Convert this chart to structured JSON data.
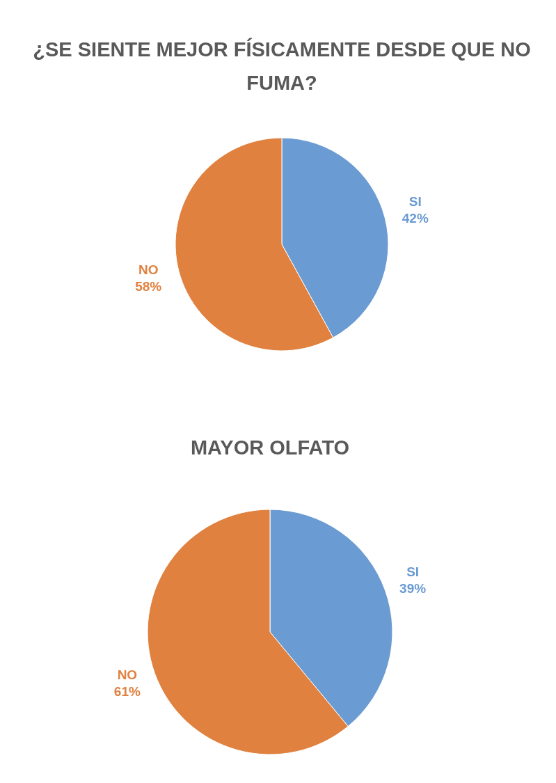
{
  "chart_data": [
    {
      "type": "pie",
      "title": "¿SE SIENTE MEJOR FÍSICAMENTE DESDE QUE NO FUMA?",
      "categories": [
        "SI",
        "NO"
      ],
      "values": [
        42,
        58
      ],
      "value_labels": [
        "42%",
        "58%"
      ],
      "colors": [
        "#6a9bd2",
        "#e0813f"
      ],
      "legend": false
    },
    {
      "type": "pie",
      "title": "MAYOR OLFATO",
      "categories": [
        "SI",
        "NO"
      ],
      "values": [
        39,
        61
      ],
      "value_labels": [
        "39%",
        "61%"
      ],
      "colors": [
        "#6a9bd2",
        "#e0813f"
      ],
      "legend": false
    }
  ]
}
